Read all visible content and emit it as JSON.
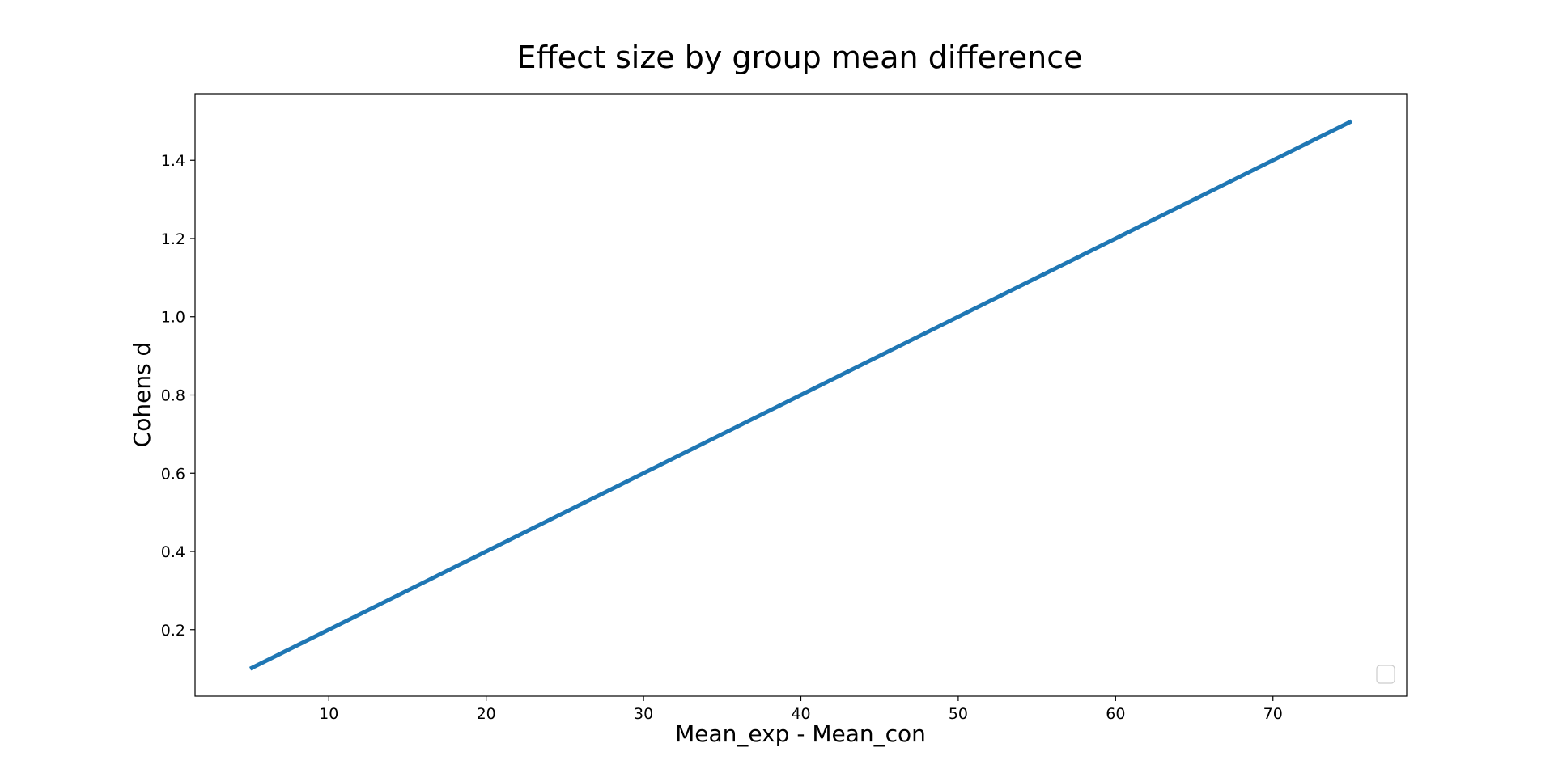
{
  "chart_data": {
    "type": "line",
    "title": "Effect size by group mean difference",
    "xlabel": "Mean_exp - Mean_con",
    "ylabel": "Cohens d",
    "xlim": [
      1.5,
      78.5
    ],
    "ylim": [
      0.03,
      1.57
    ],
    "xticks": [
      10,
      20,
      30,
      40,
      50,
      60,
      70
    ],
    "yticks": [
      0.2,
      0.4,
      0.6,
      0.8,
      1.0,
      1.2,
      1.4
    ],
    "xtick_labels": [
      "10",
      "20",
      "30",
      "40",
      "50",
      "60",
      "70"
    ],
    "ytick_labels": [
      "0.2",
      "0.4",
      "0.6",
      "0.8",
      "1.0",
      "1.2",
      "1.4"
    ],
    "grid": false,
    "legend": {
      "placement": "lower right",
      "entries": []
    },
    "series": [
      {
        "color": "#1f77b4",
        "x": [
          5,
          75
        ],
        "y": [
          0.1,
          1.5
        ]
      }
    ]
  }
}
